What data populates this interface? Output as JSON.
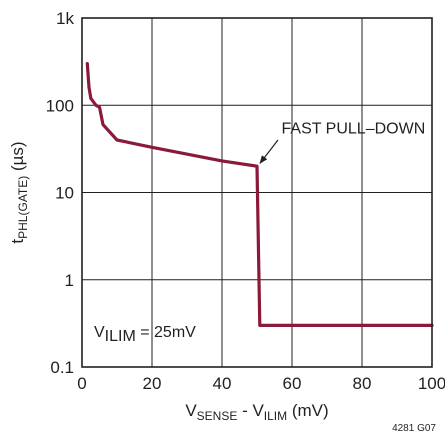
{
  "chart_data": {
    "type": "line",
    "xscale": "linear",
    "yscale": "log",
    "xlim": [
      0,
      100
    ],
    "ylim": [
      0.1,
      1000
    ],
    "xticks": [
      0,
      20,
      40,
      60,
      80,
      100
    ],
    "xtick_labels": [
      "0",
      "20",
      "40",
      "60",
      "80",
      "100"
    ],
    "yticks": [
      0.1,
      1,
      10,
      100,
      1000
    ],
    "ytick_labels": [
      "0.1",
      "1",
      "10",
      "100",
      "1k"
    ],
    "grid": true,
    "xlabel": {
      "parts": [
        {
          "text": "V",
          "sub": false
        },
        {
          "text": "SENSE",
          "sub": true
        },
        {
          "text": " - V",
          "sub": false
        },
        {
          "text": "ILIM",
          "sub": true
        },
        {
          "text": "  (mV)",
          "sub": false
        }
      ]
    },
    "ylabel": {
      "parts": [
        {
          "text": "t",
          "sub": false
        },
        {
          "text": "PHL(GATE)",
          "sub": true
        },
        {
          "text": " (µs)",
          "sub": false
        }
      ]
    },
    "series": [
      {
        "color": "#8b1a3a",
        "points": [
          [
            1.5,
            300
          ],
          [
            2,
            160
          ],
          [
            2.5,
            120
          ],
          [
            4,
            100
          ],
          [
            5,
            95
          ],
          [
            6,
            60
          ],
          [
            10,
            40
          ],
          [
            20,
            33
          ],
          [
            40,
            23
          ],
          [
            50,
            20
          ],
          [
            50.8,
            0.3
          ],
          [
            100,
            0.3
          ]
        ]
      }
    ],
    "annotations": [
      {
        "text": "FAST PULL–DOWN",
        "arrow_to": [
          50,
          20
        ]
      }
    ],
    "inset_label": {
      "parts": [
        {
          "text": "V",
          "sub": false
        },
        {
          "text": "ILIM",
          "sub": true
        },
        {
          "text": " = 25mV",
          "sub": false
        }
      ]
    },
    "figure_id": "4281 G07"
  },
  "colors": {
    "curve": "#8b1a3a",
    "axis": "#231f20",
    "grid": "#231f20"
  }
}
